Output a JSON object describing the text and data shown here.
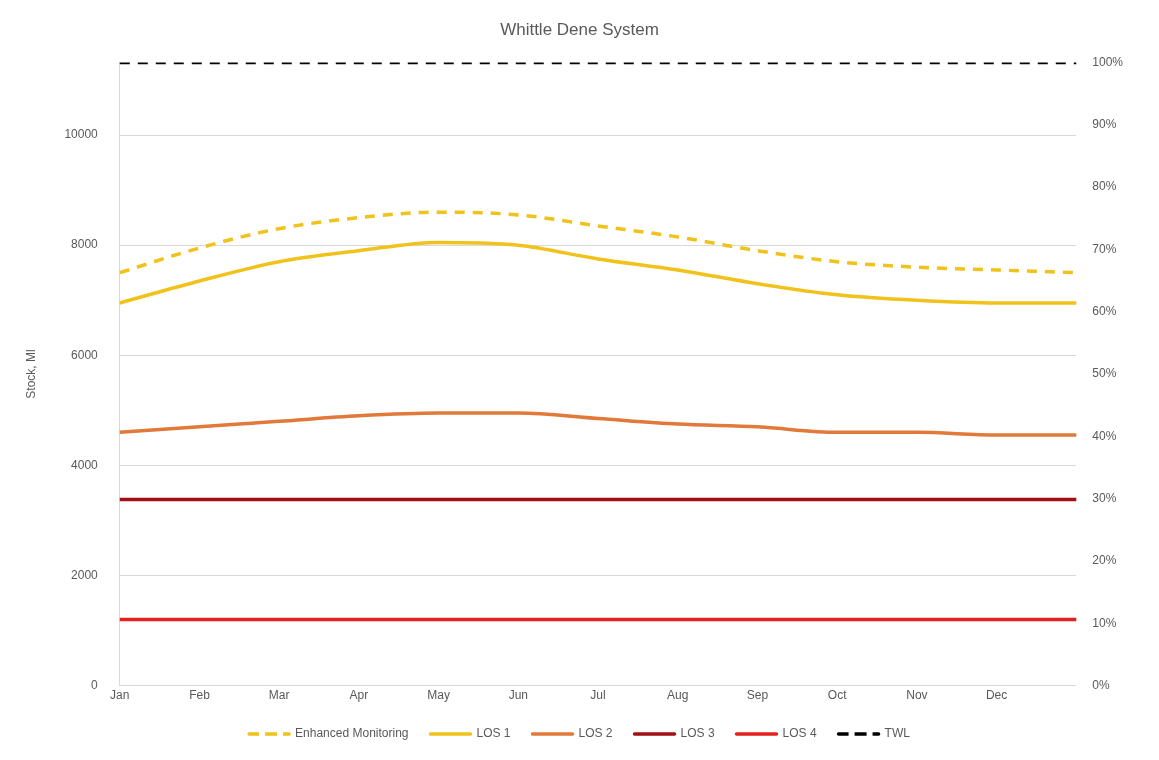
{
  "chart_data": {
    "type": "line",
    "title": "Whittle Dene System",
    "ylabel": "Stock, Ml",
    "categories": [
      "Jan",
      "Feb",
      "Mar",
      "Apr",
      "May",
      "Jun",
      "Jul",
      "Aug",
      "Sep",
      "Oct",
      "Nov",
      "Dec",
      null
    ],
    "ylim": [
      0,
      11320
    ],
    "yticks": [
      0,
      2000,
      4000,
      6000,
      8000,
      10000
    ],
    "y2lim": [
      0,
      100
    ],
    "y2ticks": [
      {
        "value": 0,
        "label": "0%"
      },
      {
        "value": 10,
        "label": "10%"
      },
      {
        "value": 20,
        "label": "20%"
      },
      {
        "value": 30,
        "label": "30%"
      },
      {
        "value": 40,
        "label": "40%"
      },
      {
        "value": 50,
        "label": "50%"
      },
      {
        "value": 60,
        "label": "60%"
      },
      {
        "value": 70,
        "label": "70%"
      },
      {
        "value": 80,
        "label": "80%"
      },
      {
        "value": 90,
        "label": "90%"
      },
      {
        "value": 100,
        "label": "100%"
      }
    ],
    "series": [
      {
        "name": "Enhanced Monitoring",
        "color": "#f0c21b",
        "line_style": "dashed",
        "values": [
          7500,
          7950,
          8300,
          8500,
          8600,
          8550,
          8350,
          8150,
          7900,
          7700,
          7600,
          7550,
          7500
        ]
      },
      {
        "name": "LOS 1",
        "color": "#f0c21b",
        "line_style": "solid",
        "values": [
          6950,
          7350,
          7700,
          7900,
          8050,
          8000,
          7750,
          7550,
          7300,
          7100,
          7000,
          6950,
          6950
        ]
      },
      {
        "name": "LOS 2",
        "color": "#e0793a",
        "line_style": "solid",
        "values": [
          4600,
          4700,
          4800,
          4900,
          4950,
          4950,
          4850,
          4750,
          4700,
          4600,
          4600,
          4550,
          4550
        ]
      },
      {
        "name": "LOS 3",
        "color": "#a30f12",
        "line_style": "solid",
        "values": [
          3380,
          3380,
          3380,
          3380,
          3380,
          3380,
          3380,
          3380,
          3380,
          3380,
          3380,
          3380,
          3380
        ]
      },
      {
        "name": "LOS 4",
        "color": "#e3201d",
        "line_style": "solid",
        "values": [
          1200,
          1200,
          1200,
          1200,
          1200,
          1200,
          1200,
          1200,
          1200,
          1200,
          1200,
          1200,
          1200
        ]
      },
      {
        "name": "TWL",
        "color": "#000000",
        "line_style": "dashed",
        "axis": "y2",
        "values": [
          100,
          100,
          100,
          100,
          100,
          100,
          100,
          100,
          100,
          100,
          100,
          100,
          100
        ]
      }
    ],
    "grid": "y",
    "legend": "bottom",
    "marker": "none"
  }
}
